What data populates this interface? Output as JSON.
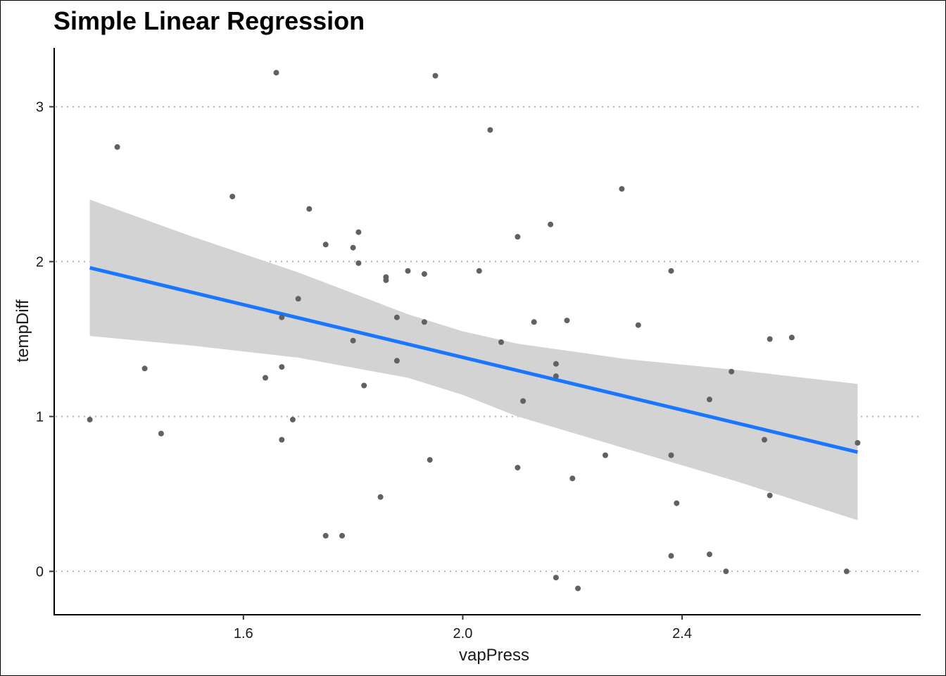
{
  "chart_data": {
    "type": "scatter",
    "title": "Simple Linear Regression",
    "xlabel": "vapPress",
    "ylabel": "tempDiff",
    "xlim": [
      1.255,
      2.835
    ],
    "ylim": [
      -0.28,
      3.38
    ],
    "xticks": [
      1.6,
      2.0,
      2.4
    ],
    "xtick_labels": [
      "1.6",
      "2.0",
      "2.4"
    ],
    "yticks": [
      0,
      1,
      2,
      3
    ],
    "ytick_labels": [
      "0",
      "1",
      "2",
      "3"
    ],
    "grid": "horizontal-dotted",
    "point_color": "#616161",
    "line_color": "#1976FF",
    "band_color": "#D3D3D3",
    "series": [
      {
        "type": "points",
        "x": [
          1.32,
          1.37,
          1.42,
          1.45,
          1.58,
          1.66,
          1.67,
          1.67,
          1.67,
          1.64,
          1.69,
          1.7,
          1.72,
          1.75,
          1.75,
          1.78,
          1.8,
          1.8,
          1.81,
          1.81,
          1.82,
          1.85,
          1.86,
          1.86,
          1.88,
          1.88,
          1.9,
          1.93,
          1.93,
          1.94,
          1.95,
          2.03,
          2.05,
          2.07,
          2.1,
          2.1,
          2.11,
          2.13,
          2.16,
          2.17,
          2.17,
          2.17,
          2.19,
          2.2,
          2.21,
          2.26,
          2.29,
          2.32,
          2.38,
          2.38,
          2.38,
          2.39,
          2.45,
          2.45,
          2.48,
          2.49,
          2.55,
          2.56,
          2.56,
          2.6,
          2.7,
          2.72
        ],
        "y": [
          0.98,
          2.74,
          1.31,
          0.89,
          2.42,
          3.22,
          1.64,
          1.32,
          0.85,
          1.25,
          0.98,
          1.76,
          2.34,
          2.11,
          0.23,
          0.23,
          2.09,
          1.49,
          2.19,
          1.99,
          1.2,
          0.48,
          1.9,
          1.88,
          1.64,
          1.36,
          1.94,
          1.92,
          1.61,
          0.72,
          3.2,
          1.94,
          2.85,
          1.48,
          2.16,
          0.67,
          1.1,
          1.61,
          2.24,
          1.34,
          1.26,
          -0.04,
          1.62,
          0.6,
          -0.11,
          0.75,
          2.47,
          1.59,
          1.94,
          0.75,
          0.1,
          0.44,
          1.11,
          0.11,
          0.0,
          1.29,
          0.85,
          1.5,
          0.49,
          1.51,
          0.0,
          0.83
        ]
      },
      {
        "type": "regression-line",
        "x": [
          1.32,
          2.72
        ],
        "y": [
          1.96,
          0.77
        ]
      },
      {
        "type": "confidence-band",
        "x": [
          1.32,
          1.5,
          1.7,
          1.9,
          2.0,
          2.1,
          2.3,
          2.5,
          2.72
        ],
        "lower": [
          1.52,
          1.46,
          1.38,
          1.25,
          1.14,
          1.0,
          0.79,
          0.58,
          0.33
        ],
        "upper": [
          2.4,
          2.17,
          1.93,
          1.66,
          1.55,
          1.47,
          1.37,
          1.3,
          1.21
        ]
      }
    ]
  }
}
